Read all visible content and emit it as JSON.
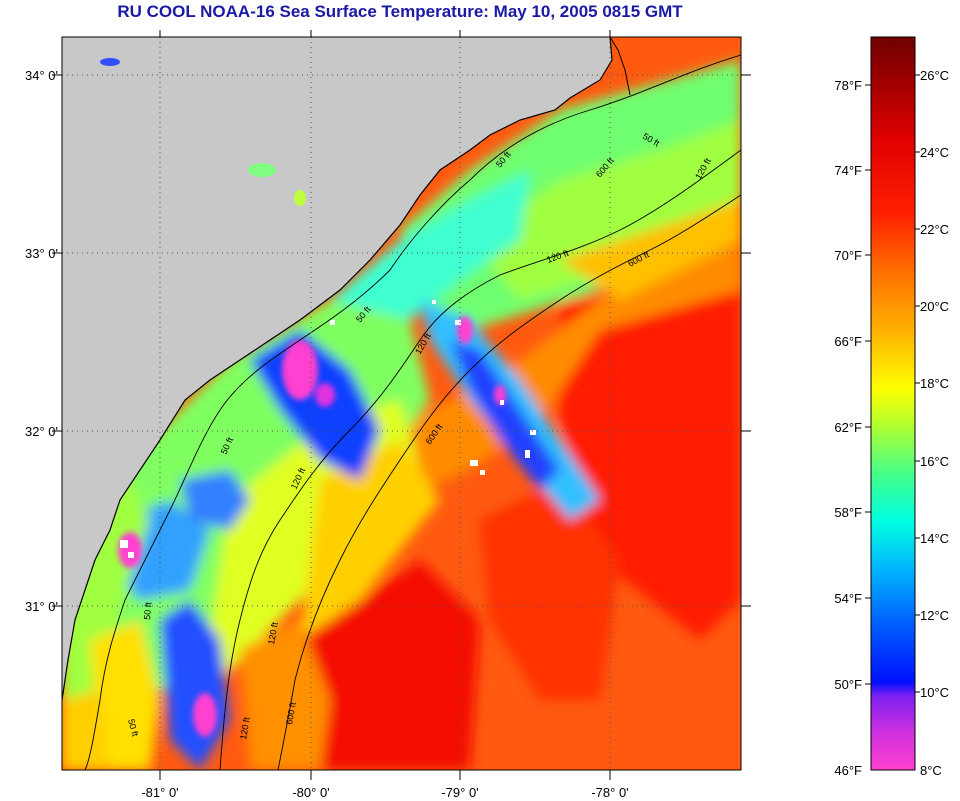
{
  "title": "RU COOL  NOAA-16  Sea Surface Temperature:  May 10, 2005 0815 GMT",
  "colors": {
    "land": "#c8c8c8",
    "missing": "#ffffff",
    "grid": "#555555",
    "title": "#1a1aa6"
  },
  "map": {
    "lat_labels": [
      "34° 0'",
      "33° 0'",
      "32° 0'",
      "31° 0'"
    ],
    "lon_labels": [
      "-81° 0'",
      "-80° 0'",
      "-79° 0'",
      "-78° 0'"
    ],
    "contour_labels": [
      "50 ft",
      "120 ft",
      "600 ft",
      "50 ft",
      "120 ft",
      "600 ft",
      "50 ft",
      "120 ft",
      "600 ft",
      "50 ft",
      "120 ft",
      "50 ft",
      "120 ft",
      "600 ft",
      "50 ft",
      "120 ft"
    ]
  },
  "colorbar": {
    "fahrenheit_labels": [
      "78°F",
      "74°F",
      "70°F",
      "66°F",
      "62°F",
      "58°F",
      "54°F",
      "50°F",
      "46°F"
    ],
    "celsius_labels": [
      "26°C",
      "24°C",
      "22°C",
      "20°C",
      "18°C",
      "16°C",
      "14°C",
      "12°C",
      "10°C",
      "8°C"
    ],
    "range_celsius": [
      8,
      27.5
    ],
    "stops": [
      "#ff40d0",
      "#a020f0",
      "#0010ff",
      "#0070ff",
      "#00e0ff",
      "#40ff90",
      "#c0ff20",
      "#ffff00",
      "#ffa000",
      "#ff5000",
      "#ff0000",
      "#d00000",
      "#700000"
    ]
  }
}
